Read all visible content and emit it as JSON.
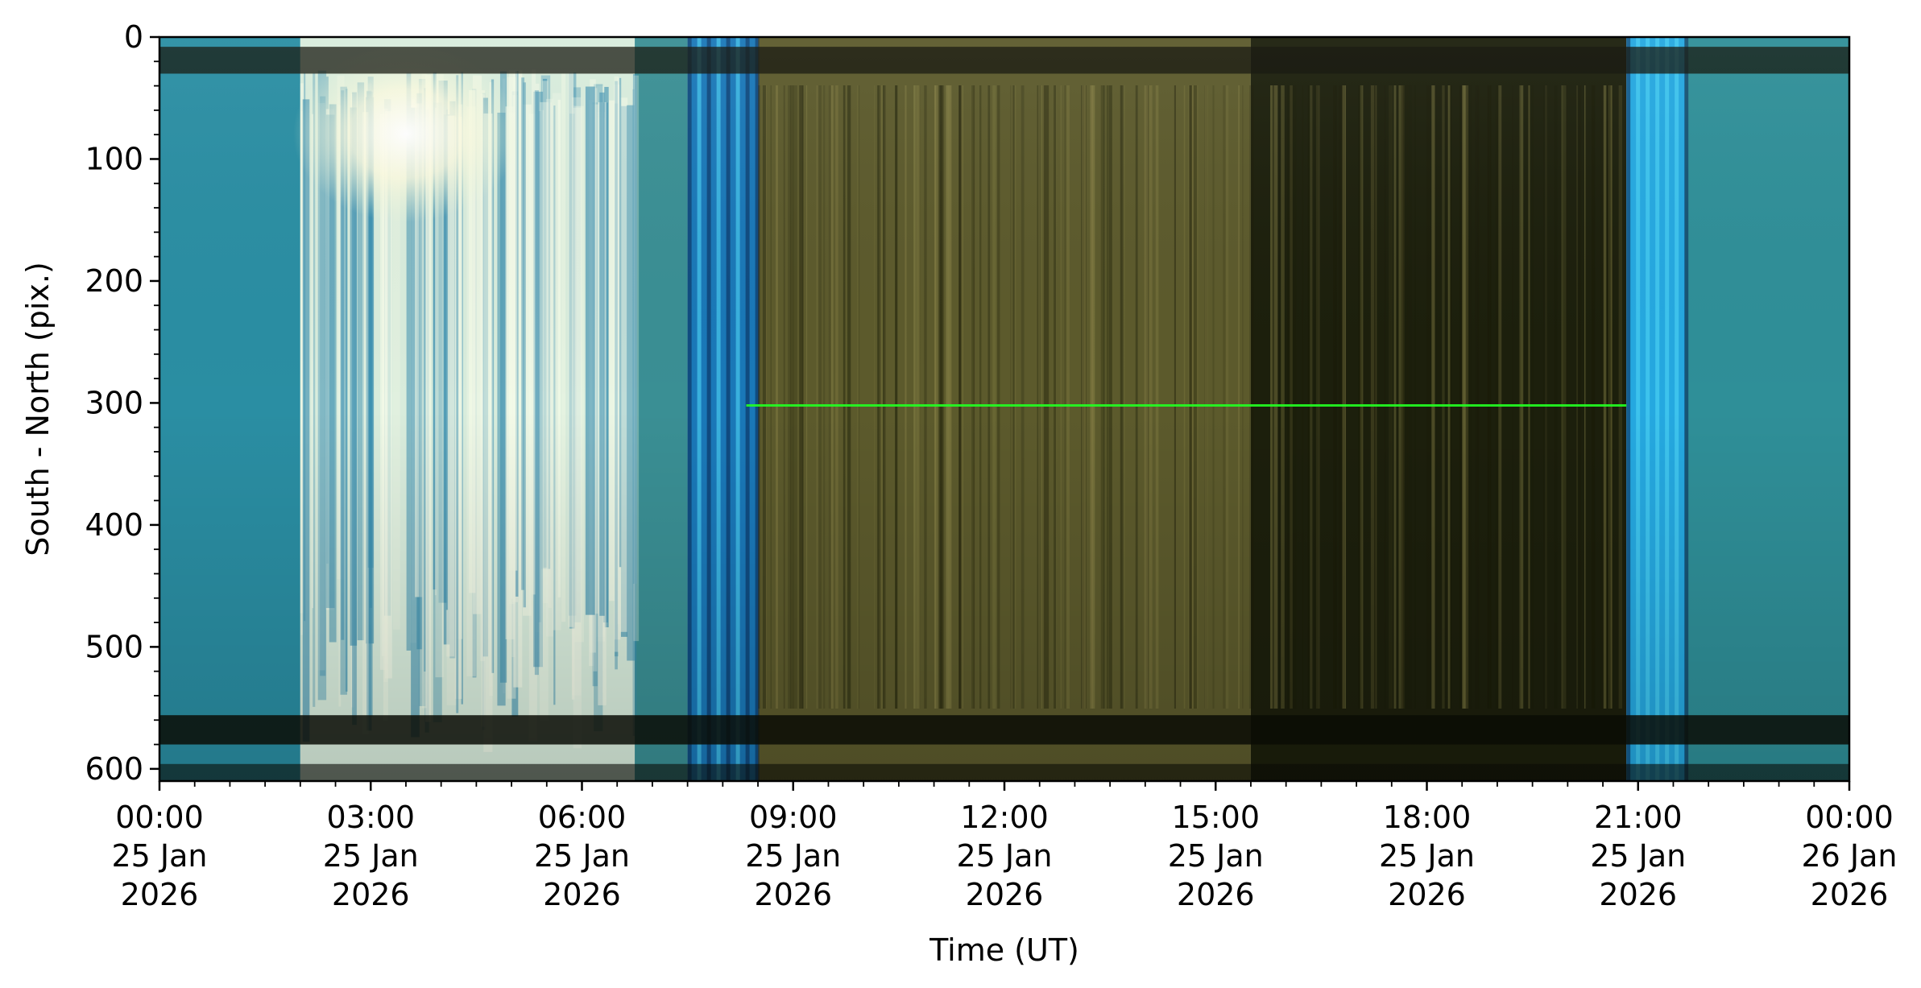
{
  "chart_data": {
    "type": "heatmap",
    "xlabel": "Time (UT)",
    "ylabel": "South - North (pix.)",
    "x_range": [
      "2026-01-25 00:00",
      "2026-01-26 00:00"
    ],
    "ylim": [
      610,
      0
    ],
    "y_inverted": true,
    "grid": false,
    "x_ticks": [
      {
        "value": "2026-01-25 00:00",
        "time": "00:00",
        "day": "25 Jan",
        "year": "2026"
      },
      {
        "value": "2026-01-25 03:00",
        "time": "03:00",
        "day": "25 Jan",
        "year": "2026"
      },
      {
        "value": "2026-01-25 06:00",
        "time": "06:00",
        "day": "25 Jan",
        "year": "2026"
      },
      {
        "value": "2026-01-25 09:00",
        "time": "09:00",
        "day": "25 Jan",
        "year": "2026"
      },
      {
        "value": "2026-01-25 12:00",
        "time": "12:00",
        "day": "25 Jan",
        "year": "2026"
      },
      {
        "value": "2026-01-25 15:00",
        "time": "15:00",
        "day": "25 Jan",
        "year": "2026"
      },
      {
        "value": "2026-01-25 18:00",
        "time": "18:00",
        "day": "25 Jan",
        "year": "2026"
      },
      {
        "value": "2026-01-25 21:00",
        "time": "21:00",
        "day": "25 Jan",
        "year": "2026"
      },
      {
        "value": "2026-01-26 00:00",
        "time": "00:00",
        "day": "26 Jan",
        "year": "2026"
      }
    ],
    "y_ticks": [
      0,
      100,
      200,
      300,
      400,
      500,
      600
    ],
    "keogram_segments": [
      {
        "start": "2026-01-25 00:00",
        "end": "2026-01-25 02:00",
        "description": "sky-teal",
        "color": "#2a8ea3"
      },
      {
        "start": "2026-01-25 02:00",
        "end": "2026-01-25 06:45",
        "description": "bright-cloudy-daylight",
        "color": "#d8ecdc"
      },
      {
        "start": "2026-01-25 06:45",
        "end": "2026-01-25 07:30",
        "description": "teal",
        "color": "#3a8f94"
      },
      {
        "start": "2026-01-25 07:30",
        "end": "2026-01-25 08:30",
        "description": "twilight-blue",
        "color": "#1a78b8"
      },
      {
        "start": "2026-01-25 08:30",
        "end": "2026-01-25 15:30",
        "description": "night-olive",
        "color": "#5c5a2c"
      },
      {
        "start": "2026-01-25 15:30",
        "end": "2026-01-25 20:50",
        "description": "night-dark",
        "color": "#1c1f0c"
      },
      {
        "start": "2026-01-25 20:50",
        "end": "2026-01-25 21:40",
        "description": "twilight-blue",
        "color": "#25a8e0"
      },
      {
        "start": "2026-01-25 21:40",
        "end": "2026-01-26 00:00",
        "description": "dawn-teal",
        "color": "#2f8f98"
      }
    ],
    "green_line": {
      "y": 302,
      "start": "2026-01-25 08:20",
      "end": "2026-01-25 20:50",
      "color": "#22ff22"
    }
  }
}
